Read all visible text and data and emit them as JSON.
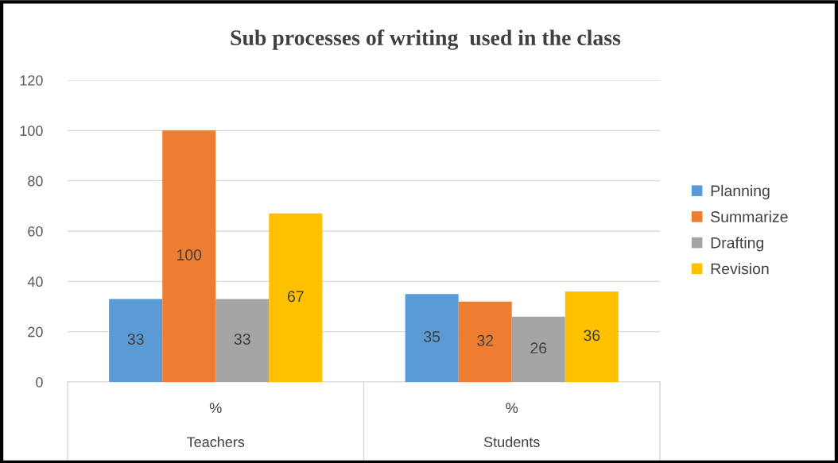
{
  "chart_data": {
    "type": "bar",
    "title": "Sub processes of writing  used in the class",
    "categories": [
      "%\nTeachers",
      "%\nStudents"
    ],
    "series": [
      {
        "name": "Planning",
        "color": "#5b9bd5",
        "values": [
          33,
          35
        ]
      },
      {
        "name": "Summarize",
        "color": "#ed7d31",
        "values": [
          100,
          32
        ]
      },
      {
        "name": "Drafting",
        "color": "#a5a5a5",
        "values": [
          33,
          26
        ]
      },
      {
        "name": "Revision",
        "color": "#ffc000",
        "values": [
          67,
          36
        ]
      }
    ],
    "ylim": [
      0,
      120
    ],
    "yticks": [
      0,
      20,
      40,
      60,
      80,
      100,
      120
    ],
    "grid": "y",
    "legend": "right",
    "data_labels": true
  }
}
